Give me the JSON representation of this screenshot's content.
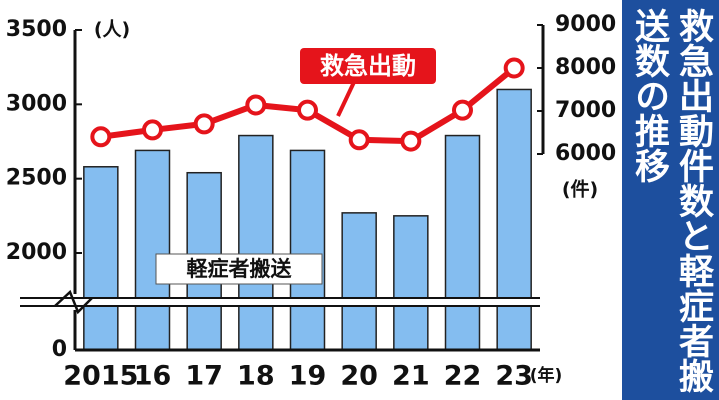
{
  "chart_data": {
    "type": "bar",
    "title": "救急出動件数と軽症者搬送数の推移",
    "y_unit": "(人)",
    "y2_unit": "(件)",
    "x_unit": "(年)",
    "categories": [
      "2015",
      "16",
      "17",
      "18",
      "19",
      "20",
      "21",
      "22",
      "23"
    ],
    "series": [
      {
        "name": "軽症者搬送",
        "type": "bar",
        "color": "#84bdf0",
        "values": [
          2580,
          2690,
          2540,
          2790,
          2690,
          2270,
          2250,
          2790,
          3100
        ]
      },
      {
        "name": "救急出動",
        "type": "line",
        "color": "#e5141b",
        "axis": "y2",
        "values": [
          6400,
          6560,
          6700,
          7140,
          7020,
          6330,
          6300,
          7020,
          8000
        ]
      }
    ],
    "ylim": [
      0,
      3500
    ],
    "yticks": [
      0,
      2000,
      2500,
      3000,
      3500
    ],
    "y2lim": [
      6000,
      9000
    ],
    "y2ticks": [
      6000,
      7000,
      8000,
      9000
    ],
    "axis_break": true
  }
}
